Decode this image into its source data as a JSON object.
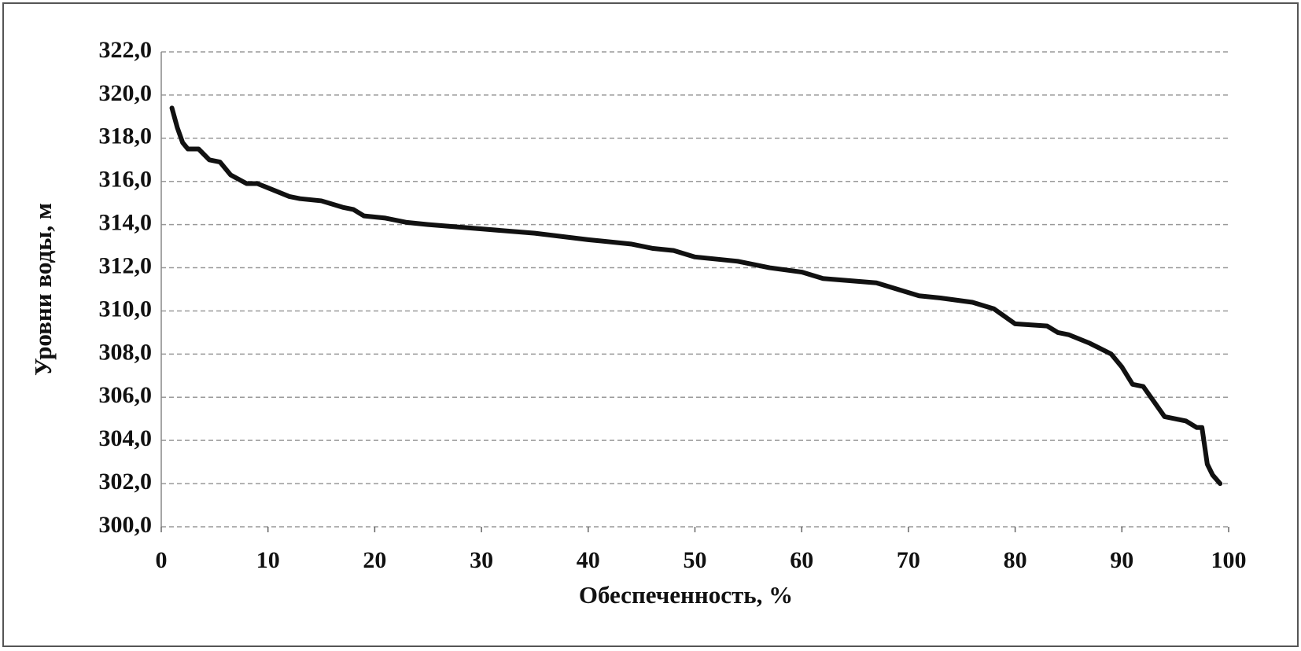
{
  "chart_data": {
    "type": "line",
    "x_label": "Обеспеченность, %",
    "y_label": "Уровни воды, м",
    "xlim": [
      0,
      100
    ],
    "xticks": [
      0,
      10,
      20,
      30,
      40,
      50,
      60,
      70,
      80,
      90,
      100
    ],
    "ylim": [
      300,
      322
    ],
    "yticks": [
      {
        "value": 300,
        "label": "300,0"
      },
      {
        "value": 302,
        "label": "302,0"
      },
      {
        "value": 304,
        "label": "304,0"
      },
      {
        "value": 306,
        "label": "306,0"
      },
      {
        "value": 308,
        "label": "308,0"
      },
      {
        "value": 310,
        "label": "310,0"
      },
      {
        "value": 312,
        "label": "312,0"
      },
      {
        "value": 314,
        "label": "314,0"
      },
      {
        "value": 316,
        "label": "316,0"
      },
      {
        "value": 318,
        "label": "318,0"
      },
      {
        "value": 320,
        "label": "320,0"
      },
      {
        "value": 322,
        "label": "322,0"
      }
    ],
    "grid": true,
    "x": [
      1,
      1.5,
      2,
      2.5,
      3.5,
      4.5,
      5.5,
      6.5,
      8,
      9,
      10,
      12,
      13,
      15,
      17,
      18,
      19,
      21,
      23,
      25,
      30,
      35,
      40,
      44,
      46,
      48,
      50,
      52,
      54,
      57,
      60,
      62,
      67,
      69,
      71,
      73,
      76,
      78,
      80,
      83,
      84,
      85,
      87,
      89,
      90,
      91,
      92,
      93,
      94,
      96,
      97,
      97.5,
      98,
      98.5,
      99.2
    ],
    "series": [
      {
        "color": "#111111",
        "values": [
          319.4,
          318.5,
          317.8,
          317.5,
          317.5,
          317.0,
          316.9,
          316.3,
          315.9,
          315.9,
          315.7,
          315.3,
          315.2,
          315.1,
          314.8,
          314.7,
          314.4,
          314.3,
          314.1,
          314.0,
          313.8,
          313.6,
          313.3,
          313.1,
          312.9,
          312.8,
          312.5,
          312.4,
          312.3,
          312.0,
          311.8,
          311.5,
          311.3,
          311.0,
          310.7,
          310.6,
          310.4,
          310.1,
          309.4,
          309.3,
          309.0,
          308.9,
          308.5,
          308.0,
          307.4,
          306.6,
          306.5,
          305.8,
          305.1,
          304.9,
          304.6,
          304.6,
          302.9,
          302.4,
          302.0
        ]
      }
    ]
  }
}
